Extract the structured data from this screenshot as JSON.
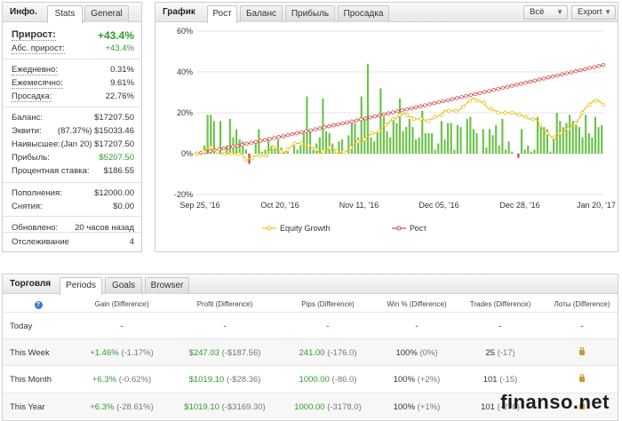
{
  "info": {
    "title": "Инфо.",
    "tabs": [
      "Stats",
      "General"
    ],
    "rows": [
      {
        "label": "Прирост:",
        "value": "+43.4%",
        "big": true,
        "green": true,
        "dotted": true
      },
      {
        "label": "Абс. прирост:",
        "value": "+43.4%",
        "green": true,
        "dotted": true
      },
      {
        "label": "Ежедневно:",
        "value": "0.31%",
        "dotted": true
      },
      {
        "label": "Ежемесячно:",
        "value": "9.61%",
        "dotted": true
      },
      {
        "label": "Просадка:",
        "value": "22.76%",
        "dotted": true
      },
      {
        "label": "Баланс:",
        "value": "$17207.50"
      },
      {
        "label": "Эквити:",
        "value": "(87.37%) $15033.46"
      },
      {
        "label": "Наивысшее:",
        "value": "(Jan 20) $17207.50"
      },
      {
        "label": "Прибыль:",
        "value": "$5207.50",
        "green": true
      },
      {
        "label": "Процентная ставка:",
        "value": "$186.55"
      },
      {
        "label": "Пополнения:",
        "value": "$12000.00"
      },
      {
        "label": "Снятия:",
        "value": "$0.00"
      },
      {
        "label": "Обновлено:",
        "value": "20 часов назад"
      },
      {
        "label": "Отслеживание",
        "value": "4"
      }
    ]
  },
  "chart_panel": {
    "title": "График",
    "tabs": [
      "Рост",
      "Баланс",
      "Прибыль",
      "Просадка"
    ],
    "dropdowns": [
      "Всё",
      "Export"
    ]
  },
  "chart_data": {
    "type": "bar+line",
    "x_ticks": [
      "Sep 25, '16",
      "Oct 20, '16",
      "Nov 11, '16",
      "Dec 05, '16",
      "Dec 28, '16",
      "Jan 20, '17"
    ],
    "y_ticks": [
      "60%",
      "40%",
      "20%",
      "0%",
      "-20%"
    ],
    "ylim": [
      -20,
      60
    ],
    "legend": [
      "Equity Growth",
      "Рост"
    ],
    "colors": {
      "bars_pos": "#6cc24a",
      "bars_neg": "#d23c3c",
      "equity": "#e8c21a",
      "growth": "#d94848",
      "grid": "#e6e6e6"
    },
    "bars": [
      0,
      1,
      4,
      19,
      19,
      16,
      2,
      16,
      0,
      4,
      17,
      8,
      12,
      7,
      6,
      2,
      -5,
      0,
      6,
      12,
      1,
      2,
      8,
      4,
      3,
      7,
      3,
      1,
      1,
      0,
      4,
      2,
      4,
      10,
      28,
      12,
      2,
      5,
      8,
      27,
      11,
      10,
      5,
      2,
      6,
      7,
      0,
      9,
      16,
      15,
      8,
      28,
      18,
      44,
      8,
      6,
      10,
      32,
      18,
      11,
      8,
      18,
      15,
      27,
      11,
      13,
      17,
      13,
      7,
      8,
      21,
      10,
      10,
      10,
      2,
      5,
      16,
      7,
      15,
      15,
      2,
      14,
      13,
      0,
      17,
      18,
      12,
      10,
      0,
      12,
      3,
      12,
      9,
      14,
      4,
      17,
      2,
      6,
      1,
      0,
      -2,
      12,
      2,
      4,
      1,
      2,
      18,
      13,
      13,
      12,
      1,
      8,
      20,
      16,
      13,
      15,
      19,
      16,
      14,
      13,
      8,
      19,
      10,
      8,
      18,
      13,
      14
    ],
    "equity": [
      0,
      0,
      0,
      1,
      2,
      3,
      3,
      2,
      2,
      1,
      0,
      0,
      0,
      0,
      0,
      0,
      0,
      0,
      0,
      0,
      -1,
      -3,
      -3,
      -2,
      -2,
      -1,
      -1,
      -1,
      -1,
      -1,
      -1,
      1,
      3,
      3,
      2,
      2,
      1,
      0,
      1,
      2,
      3,
      4,
      5,
      5,
      5,
      5,
      4,
      4,
      4,
      3,
      3,
      2,
      1,
      0,
      1,
      1,
      2,
      3,
      3,
      2,
      1,
      1,
      0,
      1,
      1,
      2,
      3,
      4,
      5,
      6,
      6,
      6,
      7,
      8,
      9,
      10,
      10,
      10,
      11,
      12,
      13,
      14,
      15,
      16,
      17,
      17,
      18,
      19,
      19,
      20,
      19,
      18,
      18,
      17,
      17,
      17,
      17,
      17,
      16,
      16,
      17,
      17,
      18,
      18,
      19,
      19,
      21,
      21,
      21,
      21,
      21,
      21,
      21,
      22,
      23,
      24,
      25,
      26,
      27,
      27,
      26,
      26,
      25,
      25,
      23,
      22,
      22,
      21,
      21,
      20,
      20,
      20,
      20,
      20,
      20,
      20,
      20,
      19,
      19,
      19,
      18,
      18,
      17,
      17,
      17,
      17,
      16,
      14,
      12,
      11,
      10,
      9,
      8,
      8,
      8,
      9,
      10,
      11,
      12,
      12,
      13,
      14,
      15,
      16,
      18,
      20,
      22,
      23,
      24,
      25,
      26,
      26,
      26,
      25,
      24
    ]
  },
  "trade": {
    "title": "Торговля",
    "tabs": [
      "Periods",
      "Goals",
      "Browser"
    ],
    "headers": [
      "?",
      "Gain (Difference)",
      "Profit (Difference)",
      "Pips (Difference)",
      "Win % (Difference)",
      "Trades (Difference)",
      "Лоты (Difference)"
    ],
    "rows": [
      {
        "period": "Today",
        "gain": "-",
        "gain_diff": "",
        "profit": "-",
        "profit_diff": "",
        "pips": "-",
        "pips_diff": "",
        "win": "-",
        "win_diff": "",
        "trades": "-",
        "trades_diff": "",
        "lots": "-"
      },
      {
        "period": "This Week",
        "gain": "+1.46%",
        "gain_diff": "(-1.17%)",
        "profit": "$247.03",
        "profit_diff": "(-$187.56)",
        "pips": "241.00",
        "pips_diff": "(-176.0)",
        "win": "100%",
        "win_diff": "(0%)",
        "trades": "25",
        "trades_diff": "(-17)",
        "lots": "lock"
      },
      {
        "period": "This Month",
        "gain": "+6.3%",
        "gain_diff": "(-0.62%)",
        "profit": "$1019.10",
        "profit_diff": "(-$28.36)",
        "pips": "1000.00",
        "pips_diff": "(-86.0)",
        "win": "100%",
        "win_diff": "(+2%)",
        "trades": "101",
        "trades_diff": "(-15)",
        "lots": "lock"
      },
      {
        "period": "This Year",
        "gain": "+6.3%",
        "gain_diff": "(-28.61%)",
        "profit": "$1019.10",
        "profit_diff": "(-$3169.30)",
        "pips": "1000.00",
        "pips_diff": "(-3178.0)",
        "win": "100%",
        "win_diff": "(+1%)",
        "trades": "101",
        "trades_diff": "(-278)",
        "lots": "lock"
      }
    ]
  },
  "watermark": "finanso.net"
}
